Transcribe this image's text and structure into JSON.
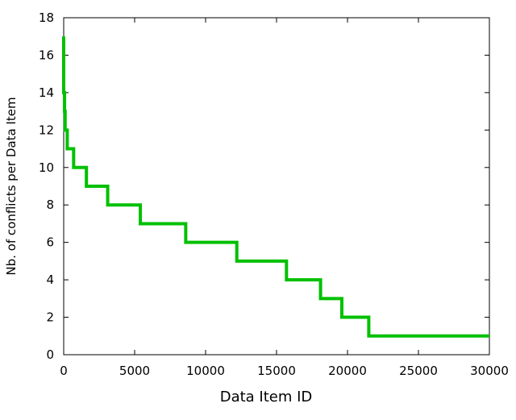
{
  "chart_data": {
    "type": "line",
    "title": "",
    "xlabel": "Data Item ID",
    "ylabel": "Nb. of conflicts per Data Item",
    "xlim": [
      0,
      30000
    ],
    "ylim": [
      0,
      18
    ],
    "xticks": [
      0,
      5000,
      10000,
      15000,
      20000,
      25000,
      30000
    ],
    "yticks": [
      0,
      2,
      4,
      6,
      8,
      10,
      12,
      14,
      16,
      18
    ],
    "xtick_labels": [
      "0",
      "5000",
      "10000",
      "15000",
      "20000",
      "25000",
      "30000"
    ],
    "ytick_labels": [
      "0",
      "2",
      "4",
      "6",
      "8",
      "10",
      "12",
      "14",
      "16",
      "18"
    ],
    "grid": false,
    "series": [
      {
        "color": "#00c000",
        "step": true,
        "points": [
          [
            0,
            17
          ],
          [
            0,
            14
          ],
          [
            60,
            14
          ],
          [
            60,
            13
          ],
          [
            100,
            13
          ],
          [
            100,
            12
          ],
          [
            250,
            12
          ],
          [
            250,
            11
          ],
          [
            700,
            11
          ],
          [
            700,
            10
          ],
          [
            1600,
            10
          ],
          [
            1600,
            9
          ],
          [
            3100,
            9
          ],
          [
            3100,
            8
          ],
          [
            5400,
            8
          ],
          [
            5400,
            7
          ],
          [
            8600,
            7
          ],
          [
            8600,
            6
          ],
          [
            12200,
            6
          ],
          [
            12200,
            5
          ],
          [
            15700,
            5
          ],
          [
            15700,
            4
          ],
          [
            18100,
            4
          ],
          [
            18100,
            3
          ],
          [
            19600,
            3
          ],
          [
            19600,
            2
          ],
          [
            21500,
            2
          ],
          [
            21500,
            1
          ],
          [
            30000,
            1
          ]
        ]
      }
    ]
  }
}
